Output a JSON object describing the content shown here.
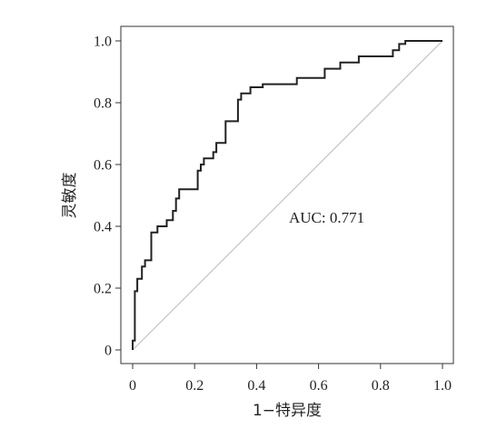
{
  "chart_data": {
    "type": "line",
    "xlabel": "1−特异度",
    "ylabel": "灵敏度",
    "xlim": [
      0,
      1
    ],
    "ylim": [
      0,
      1
    ],
    "x_ticks": [
      "0",
      "0.2",
      "0.4",
      "0.6",
      "0.8",
      "1.0"
    ],
    "y_ticks": [
      "0",
      "0.2",
      "0.4",
      "0.6",
      "0.8",
      "1.0"
    ],
    "grid": false,
    "annotation": "AUC: 0.771",
    "reference_line": {
      "x": [
        0,
        1
      ],
      "y": [
        0,
        1
      ],
      "color": "#c8c8c8"
    },
    "series": [
      {
        "color": "#222222",
        "x": [
          0,
          0,
          0.007,
          0.007,
          0.015,
          0.015,
          0.03,
          0.03,
          0.04,
          0.04,
          0.06,
          0.06,
          0.08,
          0.08,
          0.11,
          0.11,
          0.13,
          0.13,
          0.14,
          0.14,
          0.15,
          0.15,
          0.21,
          0.21,
          0.22,
          0.22,
          0.23,
          0.23,
          0.26,
          0.26,
          0.27,
          0.27,
          0.3,
          0.3,
          0.34,
          0.34,
          0.35,
          0.35,
          0.38,
          0.38,
          0.42,
          0.42,
          0.53,
          0.53,
          0.62,
          0.62,
          0.67,
          0.67,
          0.73,
          0.73,
          0.84,
          0.84,
          0.86,
          0.86,
          0.88,
          0.88,
          1.0
        ],
        "y": [
          0,
          0.03,
          0.03,
          0.19,
          0.19,
          0.23,
          0.23,
          0.27,
          0.27,
          0.29,
          0.29,
          0.38,
          0.38,
          0.4,
          0.4,
          0.42,
          0.42,
          0.45,
          0.45,
          0.49,
          0.49,
          0.52,
          0.52,
          0.58,
          0.58,
          0.6,
          0.6,
          0.62,
          0.62,
          0.64,
          0.64,
          0.67,
          0.67,
          0.74,
          0.74,
          0.81,
          0.81,
          0.83,
          0.83,
          0.85,
          0.85,
          0.86,
          0.86,
          0.88,
          0.88,
          0.91,
          0.91,
          0.93,
          0.93,
          0.95,
          0.95,
          0.97,
          0.97,
          0.99,
          0.99,
          1.0,
          1.0
        ]
      }
    ]
  }
}
